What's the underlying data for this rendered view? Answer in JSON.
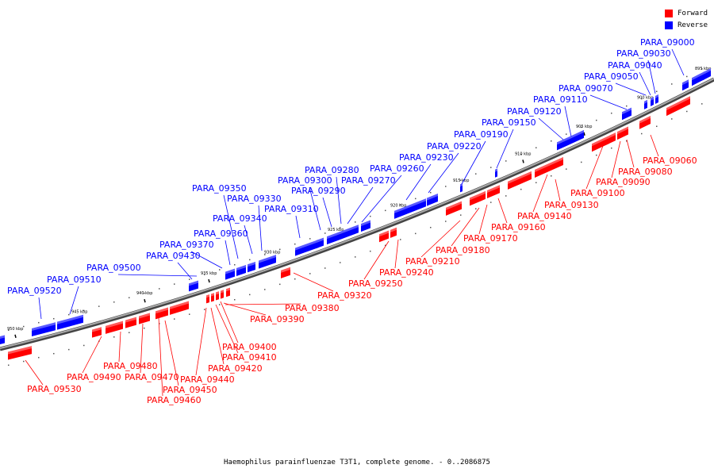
{
  "colors": {
    "forward": "#ff0000",
    "reverse": "#0000ff",
    "backbone": "#888888"
  },
  "legend": [
    {
      "label": "Forward",
      "color": "#ff0000"
    },
    {
      "label": "Reverse",
      "color": "#0000ff"
    }
  ],
  "caption": "Haemophilus parainfluenzae T3T1, complete genome. - 0..2086875",
  "ticks": [
    "895 kbp",
    "900 kbp",
    "905 kbp",
    "910 kbp",
    "915 kbp",
    "920 kbp",
    "925 kbp",
    "930 kbp",
    "935 kbp",
    "940 kbp",
    "945 kbp",
    "950 kbp"
  ],
  "reverse_labels": [
    "PARA_09000",
    "PARA_09030",
    "PARA_09040",
    "PARA_09050",
    "PARA_09070",
    "PARA_09110",
    "PARA_09120",
    "PARA_09150",
    "PARA_09190",
    "PARA_09220",
    "PARA_09230",
    "PARA_09260",
    "PARA_09270",
    "PARA_09280",
    "PARA_09290",
    "PARA_09300",
    "PARA_09310",
    "PARA_09330",
    "PARA_09340",
    "PARA_09350",
    "PARA_09360",
    "PARA_09370",
    "PARA_09430",
    "PARA_09500",
    "PARA_09510",
    "PARA_09520"
  ],
  "forward_labels": [
    "PARA_09060",
    "PARA_09080",
    "PARA_09090",
    "PARA_09100",
    "PARA_09130",
    "PARA_09140",
    "PARA_09160",
    "PARA_09170",
    "PARA_09180",
    "PARA_09210",
    "PARA_09240",
    "PARA_09250",
    "PARA_09320",
    "PARA_09380",
    "PARA_09390",
    "PARA_09400",
    "PARA_09410",
    "PARA_09420",
    "PARA_09440",
    "PARA_09450",
    "PARA_09460",
    "PARA_09470",
    "PARA_09480",
    "PARA_09490",
    "PARA_09530"
  ]
}
